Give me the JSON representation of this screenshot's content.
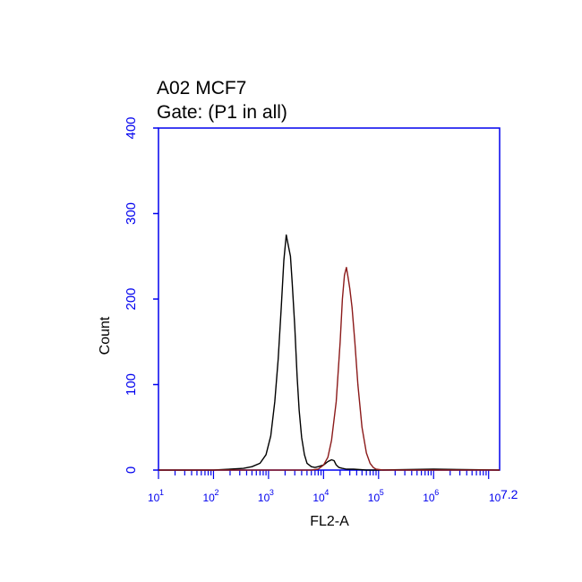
{
  "chart_data": {
    "type": "line",
    "title_lines": [
      "A02 MCF7",
      "Gate: (P1 in all)"
    ],
    "xlabel": "FL2-A",
    "ylabel": "Count",
    "x_scale": "log",
    "xlim": [
      10,
      15848932
    ],
    "ylim": [
      0,
      400
    ],
    "y_ticks": [
      0,
      100,
      200,
      300,
      400
    ],
    "x_ticks": [
      {
        "base": "10",
        "exp": "1"
      },
      {
        "base": "10",
        "exp": "2"
      },
      {
        "base": "10",
        "exp": "3"
      },
      {
        "base": "10",
        "exp": "4"
      },
      {
        "base": "10",
        "exp": "5"
      },
      {
        "base": "10",
        "exp": "6"
      },
      {
        "base": "10",
        "exp": "7.2"
      }
    ],
    "grid": false,
    "colors": {
      "axis": "#0000ee",
      "frame": "#0000ee"
    },
    "series": [
      {
        "color": "#000000",
        "x": [
          10,
          100,
          200,
          350,
          500,
          700,
          900,
          1100,
          1300,
          1500,
          1700,
          1900,
          2100,
          2300,
          2500,
          2700,
          3000,
          3300,
          3600,
          4000,
          4500,
          5000,
          6000,
          7000,
          8000,
          10000,
          12000,
          14000,
          15500,
          17000,
          19000,
          22000,
          26000,
          35000,
          60000,
          100000,
          1000000,
          15848932
        ],
        "y": [
          0,
          0,
          1,
          2,
          4,
          8,
          18,
          40,
          80,
          130,
          190,
          245,
          275,
          262,
          250,
          218,
          168,
          110,
          70,
          38,
          18,
          8,
          4,
          3,
          4,
          6,
          10,
          12,
          11,
          6,
          3,
          2,
          1,
          1,
          0,
          0,
          1,
          0
        ]
      },
      {
        "color": "#8b1a1a",
        "x": [
          10,
          3000,
          6000,
          8000,
          10000,
          12000,
          14000,
          17000,
          20000,
          22000,
          24000,
          26000,
          28000,
          30000,
          33000,
          37000,
          42000,
          50000,
          60000,
          70000,
          80000,
          90000,
          120000,
          15848932
        ],
        "y": [
          0,
          0,
          0,
          1,
          6,
          15,
          35,
          80,
          150,
          200,
          228,
          237,
          225,
          212,
          190,
          150,
          100,
          50,
          20,
          8,
          3,
          1,
          0,
          0
        ]
      }
    ]
  }
}
